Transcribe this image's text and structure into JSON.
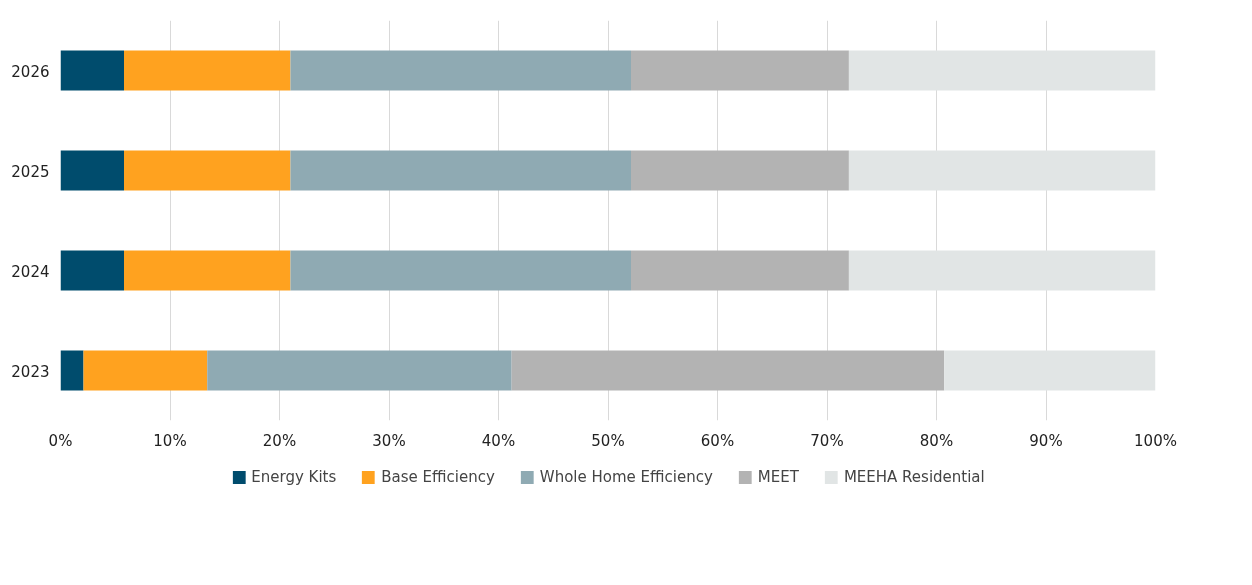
{
  "chart_data": {
    "type": "bar",
    "orientation": "horizontal",
    "stacked": true,
    "categories": [
      "2026",
      "2025",
      "2024",
      "2023"
    ],
    "series": [
      {
        "name": "Energy Kits",
        "color": "#004c6d",
        "values": [
          5.8,
          5.8,
          5.8,
          2.1
        ]
      },
      {
        "name": "Base Efficiency",
        "color": "#ffa21f",
        "values": [
          15.2,
          15.2,
          15.2,
          11.3
        ]
      },
      {
        "name": "Whole Home Efficiency",
        "color": "#8faab3",
        "values": [
          31.1,
          31.1,
          31.1,
          27.8
        ]
      },
      {
        "name": "MEET",
        "color": "#b3b3b3",
        "values": [
          19.9,
          19.9,
          19.9,
          39.5
        ]
      },
      {
        "name": "MEEHA Residential",
        "color": "#e1e5e5",
        "values": [
          28.0,
          28.0,
          28.0,
          19.3
        ]
      }
    ],
    "xlim": [
      0,
      100
    ],
    "xticks": [
      {
        "value": 0,
        "label": "0%"
      },
      {
        "value": 10,
        "label": "10%"
      },
      {
        "value": 20,
        "label": "20%"
      },
      {
        "value": 30,
        "label": "30%"
      },
      {
        "value": 40,
        "label": "40%"
      },
      {
        "value": 50,
        "label": "50%"
      },
      {
        "value": 60,
        "label": "60%"
      },
      {
        "value": 70,
        "label": "70%"
      },
      {
        "value": 80,
        "label": "80%"
      },
      {
        "value": 90,
        "label": "90%"
      },
      {
        "value": 100,
        "label": "100%"
      }
    ],
    "grid": "x",
    "legend": "bottom"
  }
}
